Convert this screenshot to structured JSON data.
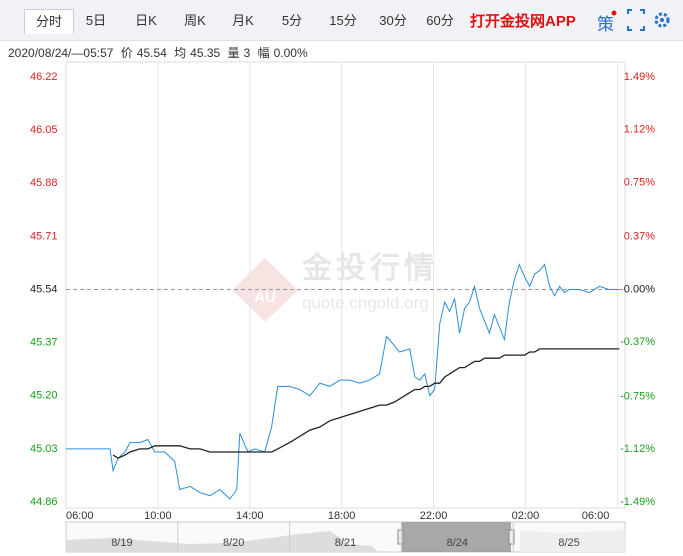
{
  "toolbar": {
    "tabs": [
      "分时",
      "5日",
      "日K",
      "周K",
      "月K",
      "5分",
      "15分",
      "30分",
      "60分"
    ],
    "app_link": "打开金投网APP",
    "strategy": "策"
  },
  "info": {
    "time": "2020/08/24/—05:57",
    "price_label": "价",
    "price": "45.54",
    "avg_label": "均",
    "avg": "45.35",
    "vol_label": "量",
    "vol": "3",
    "range_label": "幅",
    "range": "0.00%"
  },
  "watermark": {
    "logo": "AU",
    "name": "金投行情",
    "site": "quote.cngold.org"
  },
  "chart_data": {
    "type": "line",
    "x": [
      0,
      115,
      123,
      136,
      154,
      167,
      193,
      214,
      232,
      258,
      284,
      297,
      324,
      350,
      376,
      402,
      428,
      446,
      454,
      475,
      493,
      519,
      537,
      553,
      584,
      610,
      637,
      663,
      689,
      715,
      741,
      767,
      793,
      819,
      837,
      858,
      871,
      898,
      911,
      924,
      937,
      950,
      963,
      976,
      989,
      1002,
      1015,
      1028,
      1041,
      1054,
      1067,
      1080,
      1093,
      1106,
      1119,
      1132,
      1145,
      1158,
      1171,
      1184,
      1198,
      1211,
      1224,
      1237,
      1250,
      1263,
      1276,
      1289,
      1302,
      1315,
      1341,
      1367,
      1393,
      1419,
      1445
    ],
    "series": [
      {
        "color": "#2a8fd6",
        "values": [
          45.03,
          45.03,
          44.96,
          45.0,
          45.02,
          45.05,
          45.05,
          45.06,
          45.02,
          45.02,
          44.99,
          44.9,
          44.91,
          44.89,
          44.88,
          44.9,
          44.87,
          44.9,
          45.08,
          45.02,
          45.03,
          45.02,
          45.1,
          45.23,
          45.23,
          45.22,
          45.2,
          45.24,
          45.23,
          45.25,
          45.25,
          45.24,
          45.25,
          45.27,
          45.39,
          45.36,
          45.34,
          45.35,
          45.26,
          45.25,
          45.27,
          45.2,
          45.22,
          45.43,
          45.5,
          45.47,
          45.51,
          45.4,
          45.48,
          45.5,
          45.55,
          45.48,
          45.44,
          45.4,
          45.46,
          45.42,
          45.38,
          45.5,
          45.57,
          45.62,
          45.58,
          45.55,
          45.59,
          45.6,
          45.62,
          45.55,
          45.52,
          45.55,
          45.53,
          45.54,
          45.54,
          45.53,
          45.55,
          45.54,
          45.54
        ]
      },
      {
        "color": "#222222",
        "values": [
          null,
          null,
          45.01,
          45.0,
          45.01,
          45.02,
          45.03,
          45.03,
          45.04,
          45.04,
          45.04,
          45.04,
          45.03,
          45.03,
          45.02,
          45.02,
          45.02,
          45.02,
          45.02,
          45.02,
          45.02,
          45.02,
          45.02,
          45.03,
          45.05,
          45.07,
          45.09,
          45.1,
          45.12,
          45.13,
          45.14,
          45.15,
          45.16,
          45.17,
          45.17,
          45.18,
          45.19,
          45.21,
          45.22,
          45.22,
          45.23,
          45.23,
          45.24,
          45.24,
          45.26,
          45.27,
          45.28,
          45.29,
          45.29,
          45.3,
          45.31,
          45.31,
          45.32,
          45.32,
          45.32,
          45.32,
          45.33,
          45.33,
          45.33,
          45.33,
          45.33,
          45.34,
          45.34,
          45.35,
          45.35,
          45.35,
          45.35,
          45.35,
          45.35,
          45.35,
          45.35,
          45.35,
          45.35,
          45.35,
          45.35
        ]
      }
    ],
    "baseline": 45.54,
    "xlim": [
      0,
      1460
    ],
    "xticks": [
      {
        "value": 0,
        "label": "06:00"
      },
      {
        "value": 240,
        "label": "10:00"
      },
      {
        "value": 480,
        "label": "14:00"
      },
      {
        "value": 720,
        "label": "18:00"
      },
      {
        "value": 960,
        "label": "22:00"
      },
      {
        "value": 1200,
        "label": "02:00"
      },
      {
        "value": 1440,
        "label": "06:00"
      }
    ],
    "ylim": [
      44.86,
      46.22
    ],
    "yticks": [
      {
        "value": 46.22,
        "label": "46.22"
      },
      {
        "value": 46.05,
        "label": "46.05"
      },
      {
        "value": 45.88,
        "label": "45.88"
      },
      {
        "value": 45.71,
        "label": "45.71"
      },
      {
        "value": 45.54,
        "label": "45.54"
      },
      {
        "value": 45.37,
        "label": "45.37"
      },
      {
        "value": 45.2,
        "label": "45.20"
      },
      {
        "value": 45.03,
        "label": "45.03"
      },
      {
        "value": 44.86,
        "label": "44.86"
      }
    ],
    "y2lim": [
      -1.49,
      1.49
    ],
    "y2ticks": [
      {
        "value": 1.49,
        "label": "1.49%"
      },
      {
        "value": 1.12,
        "label": "1.12%"
      },
      {
        "value": 0.75,
        "label": "0.75%"
      },
      {
        "value": 0.37,
        "label": "0.37%"
      },
      {
        "value": 0,
        "label": "0.00%"
      },
      {
        "value": -0.37,
        "label": "-0.37%"
      },
      {
        "value": -0.75,
        "label": "-0.75%"
      },
      {
        "value": -1.12,
        "label": "-1.12%"
      },
      {
        "value": -1.49,
        "label": "-1.49%"
      }
    ],
    "grid": "x",
    "up_color": "#e02020",
    "down_color": "#19a019"
  },
  "navigator": {
    "dates": [
      "8/19",
      "8/20",
      "8/21",
      "8/24",
      "8/25"
    ]
  }
}
